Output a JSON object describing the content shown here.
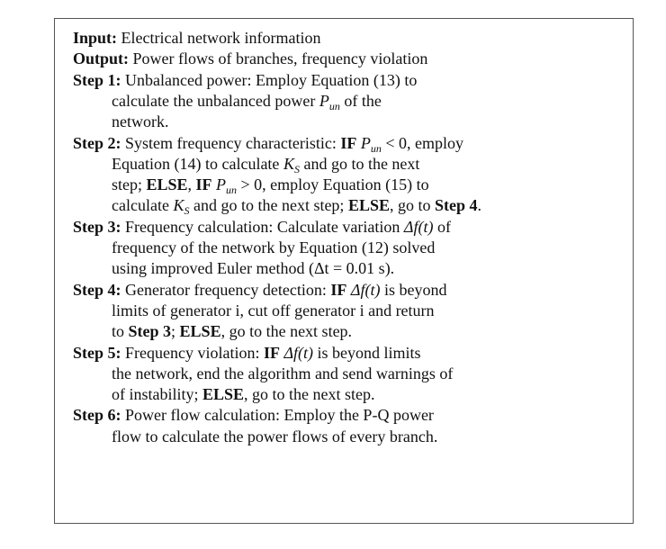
{
  "input": {
    "label": "Input:",
    "text": "Electrical network information"
  },
  "output": {
    "label": "Output:",
    "text": "Power flows of branches, frequency violation"
  },
  "steps": [
    {
      "label": "Step 1:",
      "lines": [
        [
          "Unbalanced power: Employ Equation (13) to"
        ],
        [
          "calculate the unbalanced power ",
          {
            "italic": "P",
            "sub": "un"
          },
          " of the"
        ],
        [
          "network."
        ]
      ]
    },
    {
      "label": "Step 2:",
      "lines": [
        [
          "System frequency characteristic: ",
          {
            "bold": "IF"
          },
          " ",
          {
            "italic": "P",
            "sub": "un"
          },
          " < 0, employ"
        ],
        [
          "Equation (14) to calculate ",
          {
            "italic": "K",
            "sub": "S"
          },
          " and go to the next"
        ],
        [
          "step; ",
          {
            "bold": "ELSE"
          },
          ", ",
          {
            "bold": "IF"
          },
          " ",
          {
            "italic": "P",
            "sub": "un"
          },
          " > 0, employ Equation (15) to"
        ],
        [
          "calculate ",
          {
            "italic": "K",
            "sub": "S"
          },
          " and go to the next step; ",
          {
            "bold": "ELSE"
          },
          ", go to ",
          {
            "bold": "Step 4"
          },
          "."
        ]
      ]
    },
    {
      "label": "Step 3:",
      "lines": [
        [
          "Frequency calculation: Calculate variation ",
          {
            "italic": "Δf(t)"
          },
          " of"
        ],
        [
          "frequency of the network by Equation (12) solved"
        ],
        [
          "using improved Euler method (Δt = 0.01 s)."
        ]
      ]
    },
    {
      "label": "Step 4:",
      "lines": [
        [
          "Generator frequency detection: ",
          {
            "bold": "IF"
          },
          " ",
          {
            "italic": "Δf(t)"
          },
          " is beyond"
        ],
        [
          "limits of generator i, cut off generator i and return"
        ],
        [
          "to ",
          {
            "bold": "Step 3"
          },
          "; ",
          {
            "bold": "ELSE"
          },
          ", go to the next step."
        ]
      ]
    },
    {
      "label": "Step 5:",
      "lines": [
        [
          "Frequency violation: ",
          {
            "bold": "IF"
          },
          " ",
          {
            "italic": "Δf(t)"
          },
          " is beyond limits"
        ],
        [
          "the network, end the algorithm and send warnings of"
        ],
        [
          "of instability; ",
          {
            "bold": "ELSE"
          },
          ", go to the next step."
        ]
      ]
    },
    {
      "label": "Step 6:",
      "lines": [
        [
          "Power flow calculation: Employ the P-Q power"
        ],
        [
          "flow to calculate the power flows of every branch."
        ]
      ]
    }
  ]
}
